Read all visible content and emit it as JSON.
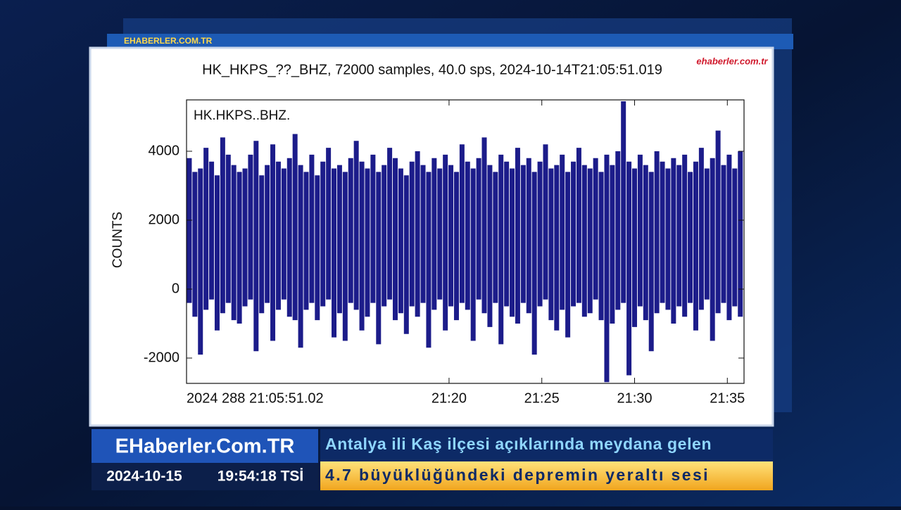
{
  "header": {
    "logo": "EHABERLER.COM.TR",
    "watermark": "ehaberler.com.tr"
  },
  "chart_data": {
    "type": "waveform",
    "title": "HK_HKPS_??_BHZ, 72000 samples, 40.0 sps, 2024-10-14T21:05:51.019",
    "ylabel": "COUNTS",
    "x": [
      6.0,
      6.3,
      6.6,
      6.9,
      7.2,
      7.5,
      7.8,
      8.1,
      8.4,
      8.7,
      9.0,
      9.3,
      9.6,
      9.9,
      10.2,
      10.5,
      10.8,
      11.1,
      11.4,
      11.7,
      12.0,
      12.3,
      12.6,
      12.9,
      13.2,
      13.5,
      13.8,
      14.1,
      14.4,
      14.7,
      15.0,
      15.3,
      15.6,
      15.9,
      16.2,
      16.5,
      16.8,
      17.1,
      17.4,
      17.7,
      18.0,
      18.3,
      18.6,
      18.9,
      19.2,
      19.5,
      19.8,
      20.1,
      20.4,
      20.7,
      21.0,
      21.3,
      21.6,
      21.9,
      22.2,
      22.5,
      22.8,
      23.1,
      23.4,
      23.7,
      24.0,
      24.3,
      24.6,
      24.9,
      25.2,
      25.5,
      25.8,
      26.1,
      26.4,
      26.7,
      27.0,
      27.3,
      27.6,
      27.9,
      28.2,
      28.5,
      28.8,
      29.1,
      29.4,
      29.7,
      30.0,
      30.3,
      30.6,
      30.9,
      31.2,
      31.5,
      31.8,
      32.1,
      32.4,
      32.7,
      33.0,
      33.3,
      33.6,
      33.9,
      34.2,
      34.5,
      34.8,
      35.1,
      35.4,
      35.7
    ],
    "series": [
      {
        "name": "HK.HKPS..BHZ.",
        "color": "#1c1c8a",
        "upper": [
          3800,
          3400,
          3500,
          4100,
          3700,
          3300,
          4400,
          3900,
          3600,
          3400,
          3500,
          3900,
          4300,
          3300,
          3600,
          4200,
          3700,
          3500,
          3800,
          4500,
          3600,
          3400,
          3900,
          3300,
          3700,
          4100,
          3500,
          3600,
          3400,
          3800,
          4300,
          3700,
          3500,
          3900,
          3400,
          3600,
          4100,
          3800,
          3500,
          3300,
          3700,
          4000,
          3600,
          3400,
          3800,
          3500,
          3900,
          3600,
          3400,
          4200,
          3700,
          3500,
          3800,
          4400,
          3600,
          3400,
          3900,
          3700,
          3500,
          4100,
          3600,
          3800,
          3400,
          3700,
          4200,
          3500,
          3600,
          3900,
          3400,
          3700,
          4100,
          3600,
          3500,
          3800,
          3400,
          3900,
          3600,
          4000,
          5450,
          3700,
          3500,
          3900,
          3600,
          3400,
          4000,
          3700,
          3500,
          3800,
          3600,
          3900,
          3400,
          3700,
          4100,
          3500,
          3800,
          4600,
          3600,
          3900,
          3500,
          4000
        ],
        "lower": [
          -400,
          -800,
          -1900,
          -600,
          -300,
          -1200,
          -700,
          -400,
          -900,
          -1000,
          -500,
          -300,
          -1800,
          -700,
          -400,
          -1500,
          -600,
          -300,
          -800,
          -900,
          -1700,
          -600,
          -400,
          -900,
          -500,
          -300,
          -1400,
          -700,
          -1500,
          -400,
          -600,
          -1200,
          -800,
          -400,
          -1600,
          -500,
          -300,
          -900,
          -700,
          -1300,
          -500,
          -800,
          -400,
          -1700,
          -600,
          -300,
          -1200,
          -500,
          -900,
          -400,
          -600,
          -1500,
          -300,
          -700,
          -1100,
          -400,
          -1600,
          -500,
          -800,
          -1000,
          -400,
          -700,
          -1900,
          -500,
          -300,
          -900,
          -1200,
          -600,
          -1400,
          -500,
          -400,
          -800,
          -700,
          -300,
          -900,
          -2700,
          -1000,
          -600,
          -400,
          -2500,
          -1100,
          -500,
          -900,
          -1800,
          -700,
          -400,
          -600,
          -1000,
          -500,
          -800,
          -400,
          -1200,
          -600,
          -300,
          -1500,
          -700,
          -400,
          -900,
          -500,
          -800
        ]
      }
    ],
    "xlim": [
      5.8505,
      35.9
    ],
    "ylim": [
      -2735,
      5490
    ],
    "xticks": [
      {
        "value": 5.8505,
        "label": "2024 288 21:05:51.02"
      },
      {
        "value": 20,
        "label": "21:20"
      },
      {
        "value": 25,
        "label": "21:25"
      },
      {
        "value": 30,
        "label": "21:30"
      },
      {
        "value": 35,
        "label": "21:35"
      }
    ],
    "yticks": [
      -2000,
      0,
      2000,
      4000
    ]
  },
  "ticker": {
    "brand": "EHaberler.Com.TR",
    "date": "2024-10-15",
    "time": "19:54:18 TSİ",
    "lines": [
      "Antalya ili Kaş ilçesi açıklarında meydana gelen",
      "4.7 büyüklüğündeki depremin yeraltı sesi"
    ]
  }
}
